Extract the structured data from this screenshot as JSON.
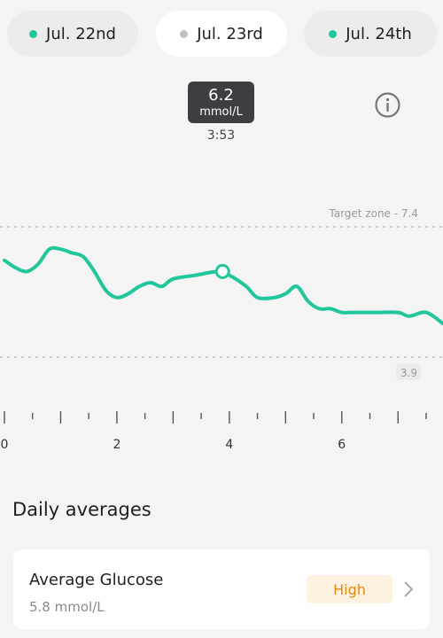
{
  "colors": {
    "accent": "#21c69a",
    "inactive_dot": "#c0c0c0",
    "badge_text": "#e08a14",
    "badge_bg": "#fdf1df"
  },
  "date_tabs": [
    {
      "label": "Jul. 22nd",
      "dot_color": "#21c69a",
      "selected": false
    },
    {
      "label": "Jul. 23rd",
      "dot_color": "#c0c0c0",
      "selected": true
    },
    {
      "label": "Jul. 24th",
      "dot_color": "#21c69a",
      "selected": false
    }
  ],
  "tooltip": {
    "value": "6.2",
    "unit": "mmol/L",
    "time": "3:53"
  },
  "info_icon": "info-icon",
  "chart_data": {
    "type": "line",
    "x_ticks": [
      "0",
      "2",
      "4",
      "6"
    ],
    "xlim": [
      0,
      7.8
    ],
    "ylim": [
      3.0,
      8.5
    ],
    "target_upper_label": "Target zone - 7.4",
    "target_upper": 7.4,
    "target_lower_label": "3.9",
    "target_lower": 3.9,
    "series": [
      {
        "x": [
          0,
          0.2,
          0.4,
          0.6,
          0.8,
          1.0,
          1.2,
          1.4,
          1.6,
          1.8,
          2.0,
          2.2,
          2.4,
          2.6,
          2.8,
          3.0,
          3.4,
          3.8,
          4.0,
          4.3,
          4.5,
          4.8,
          5.0,
          5.2,
          5.4,
          5.6,
          5.8,
          6.0,
          6.2,
          6.6,
          7.0,
          7.2,
          7.5,
          7.8
        ],
        "y": [
          6.5,
          6.3,
          6.2,
          6.4,
          6.8,
          6.8,
          6.7,
          6.6,
          6.2,
          5.7,
          5.5,
          5.6,
          5.8,
          5.9,
          5.8,
          6.0,
          6.1,
          6.2,
          6.1,
          5.8,
          5.5,
          5.5,
          5.6,
          5.8,
          5.4,
          5.2,
          5.2,
          5.1,
          5.1,
          5.1,
          5.1,
          5.0,
          5.1,
          4.8
        ]
      }
    ],
    "marker": {
      "x": 3.88,
      "y": 6.2
    },
    "grid": false
  },
  "section_title": "Daily averages",
  "average_card": {
    "label": "Average Glucose",
    "value": "5.8 mmol/L",
    "badge": "High"
  }
}
